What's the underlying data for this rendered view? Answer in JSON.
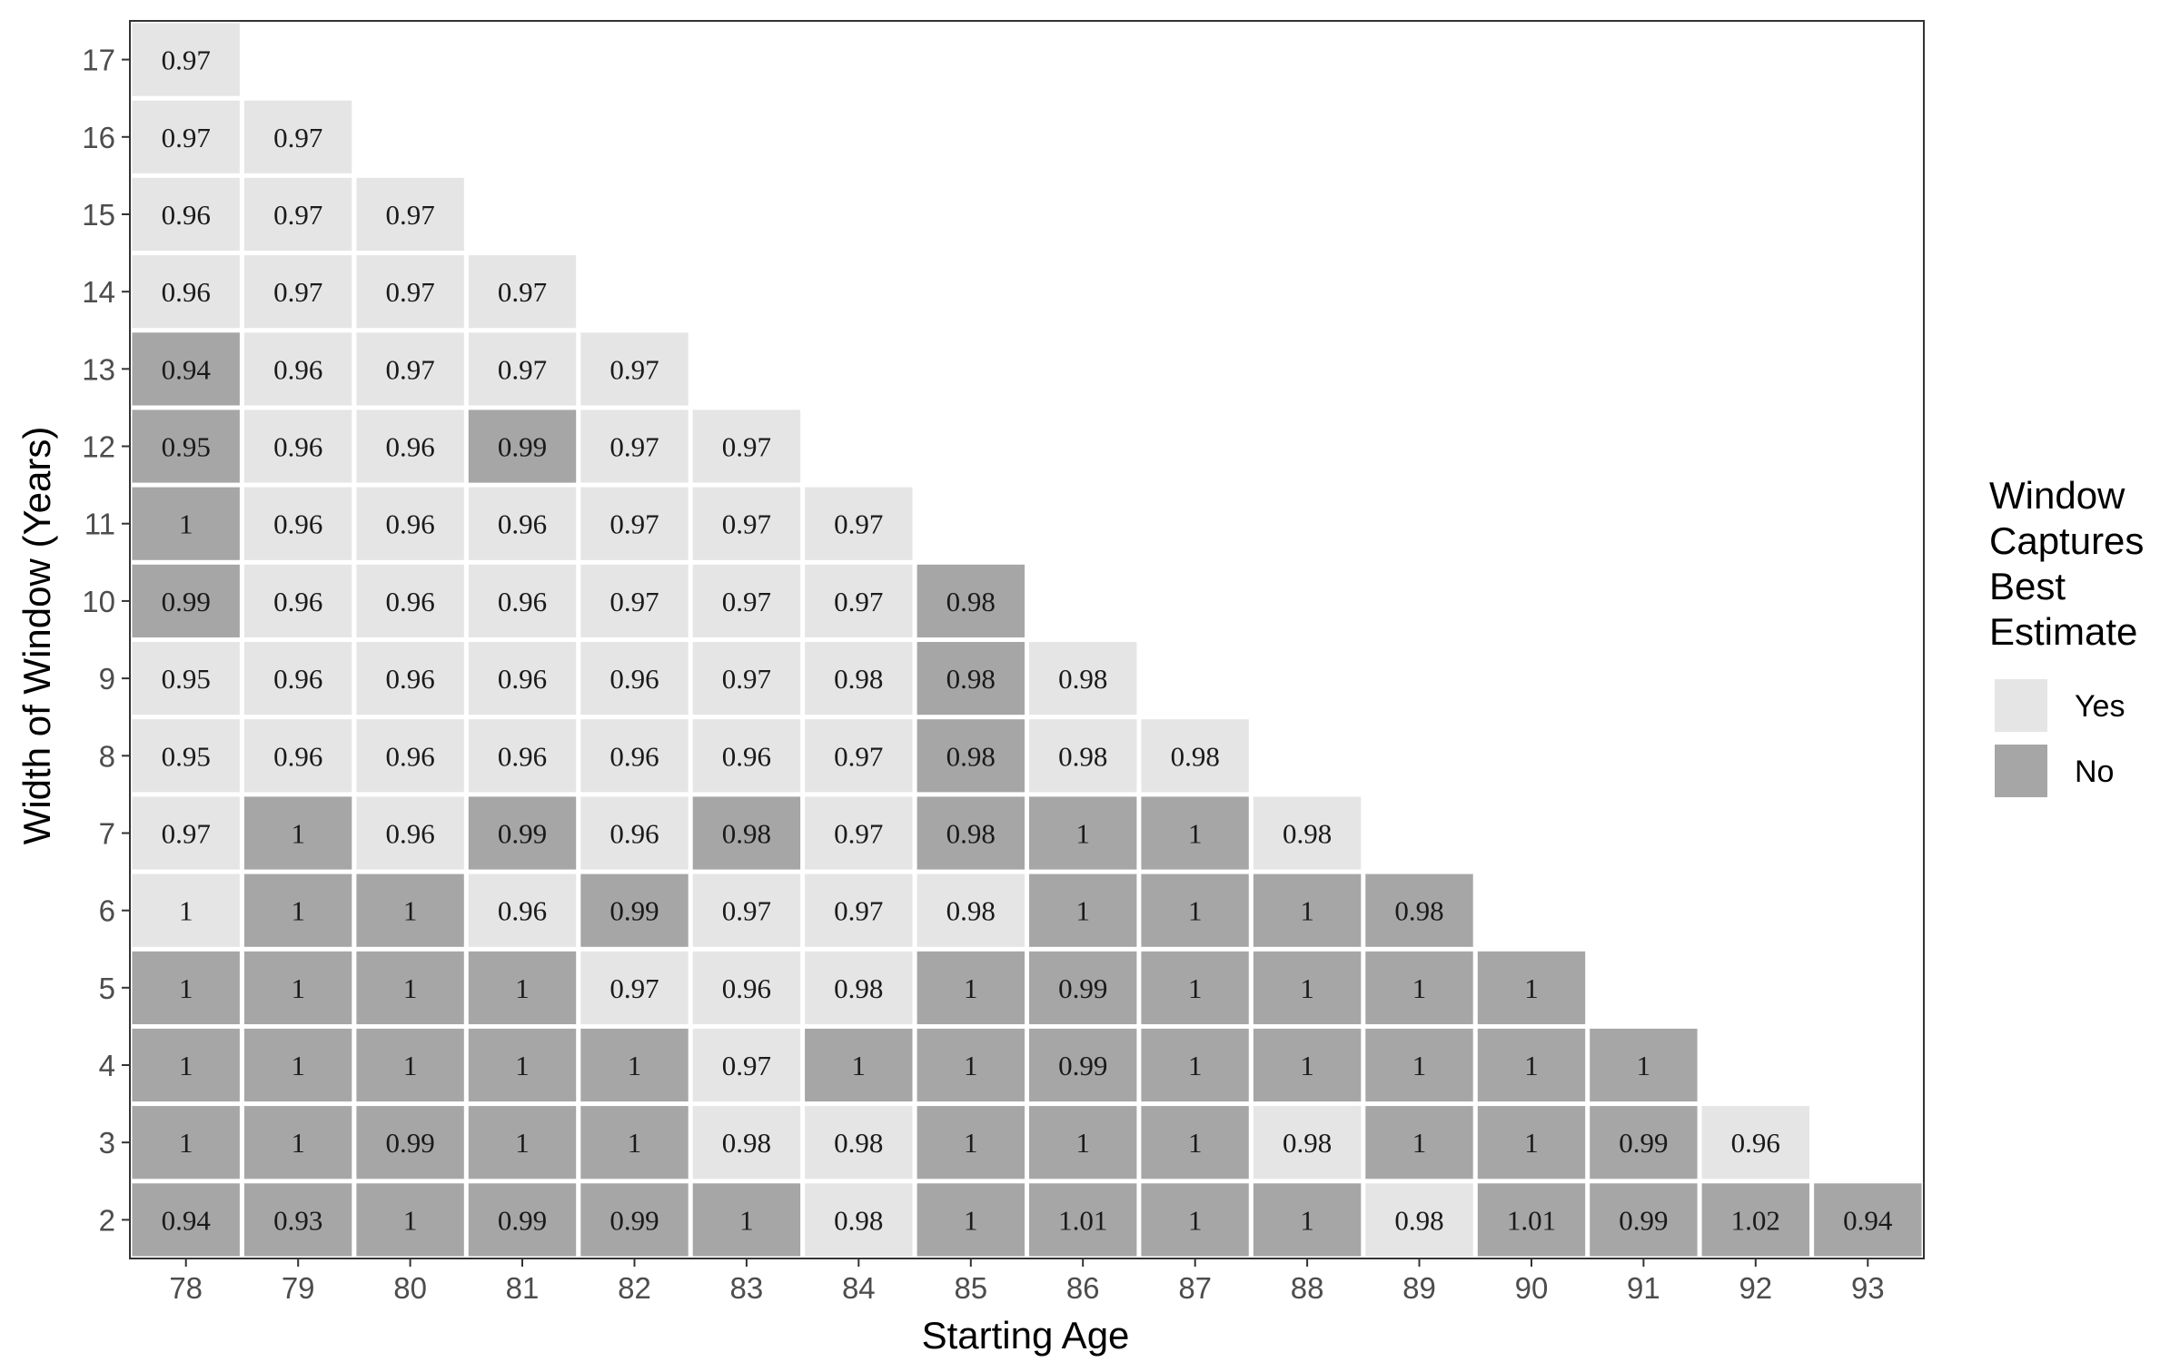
{
  "chart_data": {
    "type": "heatmap",
    "title": "",
    "xlabel": "Starting Age",
    "ylabel": "Width of Window (Years)",
    "x_ticks": [
      "78",
      "79",
      "80",
      "81",
      "82",
      "83",
      "84",
      "85",
      "86",
      "87",
      "88",
      "89",
      "90",
      "91",
      "92",
      "93"
    ],
    "y_ticks": [
      "2",
      "3",
      "4",
      "5",
      "6",
      "7",
      "8",
      "9",
      "10",
      "11",
      "12",
      "13",
      "14",
      "15",
      "16",
      "17"
    ],
    "legend": {
      "title": "Window Captures Best Estimate",
      "title_lines": [
        "Window",
        "Captures",
        "Best",
        "Estimate"
      ],
      "placement": "right",
      "entries": [
        {
          "label": "Yes",
          "key": "Y",
          "color": "#e5e5e5"
        },
        {
          "label": "No",
          "key": "N",
          "color": "#a6a6a6"
        }
      ]
    },
    "grid": false,
    "columns": [
      {
        "age": "78",
        "cells": [
          {
            "w": 2,
            "v": "0.94",
            "c": "N"
          },
          {
            "w": 3,
            "v": "1",
            "c": "N"
          },
          {
            "w": 4,
            "v": "1",
            "c": "N"
          },
          {
            "w": 5,
            "v": "1",
            "c": "N"
          },
          {
            "w": 6,
            "v": "1",
            "c": "Y"
          },
          {
            "w": 7,
            "v": "0.97",
            "c": "Y"
          },
          {
            "w": 8,
            "v": "0.95",
            "c": "Y"
          },
          {
            "w": 9,
            "v": "0.95",
            "c": "Y"
          },
          {
            "w": 10,
            "v": "0.99",
            "c": "N"
          },
          {
            "w": 11,
            "v": "1",
            "c": "N"
          },
          {
            "w": 12,
            "v": "0.95",
            "c": "N"
          },
          {
            "w": 13,
            "v": "0.94",
            "c": "N"
          },
          {
            "w": 14,
            "v": "0.96",
            "c": "Y"
          },
          {
            "w": 15,
            "v": "0.96",
            "c": "Y"
          },
          {
            "w": 16,
            "v": "0.97",
            "c": "Y"
          },
          {
            "w": 17,
            "v": "0.97",
            "c": "Y"
          }
        ]
      },
      {
        "age": "79",
        "cells": [
          {
            "w": 2,
            "v": "0.93",
            "c": "N"
          },
          {
            "w": 3,
            "v": "1",
            "c": "N"
          },
          {
            "w": 4,
            "v": "1",
            "c": "N"
          },
          {
            "w": 5,
            "v": "1",
            "c": "N"
          },
          {
            "w": 6,
            "v": "1",
            "c": "N"
          },
          {
            "w": 7,
            "v": "1",
            "c": "N"
          },
          {
            "w": 8,
            "v": "0.96",
            "c": "Y"
          },
          {
            "w": 9,
            "v": "0.96",
            "c": "Y"
          },
          {
            "w": 10,
            "v": "0.96",
            "c": "Y"
          },
          {
            "w": 11,
            "v": "0.96",
            "c": "Y"
          },
          {
            "w": 12,
            "v": "0.96",
            "c": "Y"
          },
          {
            "w": 13,
            "v": "0.96",
            "c": "Y"
          },
          {
            "w": 14,
            "v": "0.97",
            "c": "Y"
          },
          {
            "w": 15,
            "v": "0.97",
            "c": "Y"
          },
          {
            "w": 16,
            "v": "0.97",
            "c": "Y"
          }
        ]
      },
      {
        "age": "80",
        "cells": [
          {
            "w": 2,
            "v": "1",
            "c": "N"
          },
          {
            "w": 3,
            "v": "0.99",
            "c": "N"
          },
          {
            "w": 4,
            "v": "1",
            "c": "N"
          },
          {
            "w": 5,
            "v": "1",
            "c": "N"
          },
          {
            "w": 6,
            "v": "1",
            "c": "N"
          },
          {
            "w": 7,
            "v": "0.96",
            "c": "Y"
          },
          {
            "w": 8,
            "v": "0.96",
            "c": "Y"
          },
          {
            "w": 9,
            "v": "0.96",
            "c": "Y"
          },
          {
            "w": 10,
            "v": "0.96",
            "c": "Y"
          },
          {
            "w": 11,
            "v": "0.96",
            "c": "Y"
          },
          {
            "w": 12,
            "v": "0.96",
            "c": "Y"
          },
          {
            "w": 13,
            "v": "0.97",
            "c": "Y"
          },
          {
            "w": 14,
            "v": "0.97",
            "c": "Y"
          },
          {
            "w": 15,
            "v": "0.97",
            "c": "Y"
          }
        ]
      },
      {
        "age": "81",
        "cells": [
          {
            "w": 2,
            "v": "0.99",
            "c": "N"
          },
          {
            "w": 3,
            "v": "1",
            "c": "N"
          },
          {
            "w": 4,
            "v": "1",
            "c": "N"
          },
          {
            "w": 5,
            "v": "1",
            "c": "N"
          },
          {
            "w": 6,
            "v": "0.96",
            "c": "Y"
          },
          {
            "w": 7,
            "v": "0.99",
            "c": "N"
          },
          {
            "w": 8,
            "v": "0.96",
            "c": "Y"
          },
          {
            "w": 9,
            "v": "0.96",
            "c": "Y"
          },
          {
            "w": 10,
            "v": "0.96",
            "c": "Y"
          },
          {
            "w": 11,
            "v": "0.96",
            "c": "Y"
          },
          {
            "w": 12,
            "v": "0.99",
            "c": "N"
          },
          {
            "w": 13,
            "v": "0.97",
            "c": "Y"
          },
          {
            "w": 14,
            "v": "0.97",
            "c": "Y"
          }
        ]
      },
      {
        "age": "82",
        "cells": [
          {
            "w": 2,
            "v": "0.99",
            "c": "N"
          },
          {
            "w": 3,
            "v": "1",
            "c": "N"
          },
          {
            "w": 4,
            "v": "1",
            "c": "N"
          },
          {
            "w": 5,
            "v": "0.97",
            "c": "Y"
          },
          {
            "w": 6,
            "v": "0.99",
            "c": "N"
          },
          {
            "w": 7,
            "v": "0.96",
            "c": "Y"
          },
          {
            "w": 8,
            "v": "0.96",
            "c": "Y"
          },
          {
            "w": 9,
            "v": "0.96",
            "c": "Y"
          },
          {
            "w": 10,
            "v": "0.97",
            "c": "Y"
          },
          {
            "w": 11,
            "v": "0.97",
            "c": "Y"
          },
          {
            "w": 12,
            "v": "0.97",
            "c": "Y"
          },
          {
            "w": 13,
            "v": "0.97",
            "c": "Y"
          }
        ]
      },
      {
        "age": "83",
        "cells": [
          {
            "w": 2,
            "v": "1",
            "c": "N"
          },
          {
            "w": 3,
            "v": "0.98",
            "c": "Y"
          },
          {
            "w": 4,
            "v": "0.97",
            "c": "Y"
          },
          {
            "w": 5,
            "v": "0.96",
            "c": "Y"
          },
          {
            "w": 6,
            "v": "0.97",
            "c": "Y"
          },
          {
            "w": 7,
            "v": "0.98",
            "c": "N"
          },
          {
            "w": 8,
            "v": "0.96",
            "c": "Y"
          },
          {
            "w": 9,
            "v": "0.97",
            "c": "Y"
          },
          {
            "w": 10,
            "v": "0.97",
            "c": "Y"
          },
          {
            "w": 11,
            "v": "0.97",
            "c": "Y"
          },
          {
            "w": 12,
            "v": "0.97",
            "c": "Y"
          }
        ]
      },
      {
        "age": "84",
        "cells": [
          {
            "w": 2,
            "v": "0.98",
            "c": "Y"
          },
          {
            "w": 3,
            "v": "0.98",
            "c": "Y"
          },
          {
            "w": 4,
            "v": "1",
            "c": "N"
          },
          {
            "w": 5,
            "v": "0.98",
            "c": "Y"
          },
          {
            "w": 6,
            "v": "0.97",
            "c": "Y"
          },
          {
            "w": 7,
            "v": "0.97",
            "c": "Y"
          },
          {
            "w": 8,
            "v": "0.97",
            "c": "Y"
          },
          {
            "w": 9,
            "v": "0.98",
            "c": "Y"
          },
          {
            "w": 10,
            "v": "0.97",
            "c": "Y"
          },
          {
            "w": 11,
            "v": "0.97",
            "c": "Y"
          }
        ]
      },
      {
        "age": "85",
        "cells": [
          {
            "w": 2,
            "v": "1",
            "c": "N"
          },
          {
            "w": 3,
            "v": "1",
            "c": "N"
          },
          {
            "w": 4,
            "v": "1",
            "c": "N"
          },
          {
            "w": 5,
            "v": "1",
            "c": "N"
          },
          {
            "w": 6,
            "v": "0.98",
            "c": "Y"
          },
          {
            "w": 7,
            "v": "0.98",
            "c": "N"
          },
          {
            "w": 8,
            "v": "0.98",
            "c": "N"
          },
          {
            "w": 9,
            "v": "0.98",
            "c": "N"
          },
          {
            "w": 10,
            "v": "0.98",
            "c": "N"
          }
        ]
      },
      {
        "age": "86",
        "cells": [
          {
            "w": 2,
            "v": "1.01",
            "c": "N"
          },
          {
            "w": 3,
            "v": "1",
            "c": "N"
          },
          {
            "w": 4,
            "v": "0.99",
            "c": "N"
          },
          {
            "w": 5,
            "v": "0.99",
            "c": "N"
          },
          {
            "w": 6,
            "v": "1",
            "c": "N"
          },
          {
            "w": 7,
            "v": "1",
            "c": "N"
          },
          {
            "w": 8,
            "v": "0.98",
            "c": "Y"
          },
          {
            "w": 9,
            "v": "0.98",
            "c": "Y"
          }
        ]
      },
      {
        "age": "87",
        "cells": [
          {
            "w": 2,
            "v": "1",
            "c": "N"
          },
          {
            "w": 3,
            "v": "1",
            "c": "N"
          },
          {
            "w": 4,
            "v": "1",
            "c": "N"
          },
          {
            "w": 5,
            "v": "1",
            "c": "N"
          },
          {
            "w": 6,
            "v": "1",
            "c": "N"
          },
          {
            "w": 7,
            "v": "1",
            "c": "N"
          },
          {
            "w": 8,
            "v": "0.98",
            "c": "Y"
          }
        ]
      },
      {
        "age": "88",
        "cells": [
          {
            "w": 2,
            "v": "1",
            "c": "N"
          },
          {
            "w": 3,
            "v": "0.98",
            "c": "Y"
          },
          {
            "w": 4,
            "v": "1",
            "c": "N"
          },
          {
            "w": 5,
            "v": "1",
            "c": "N"
          },
          {
            "w": 6,
            "v": "1",
            "c": "N"
          },
          {
            "w": 7,
            "v": "0.98",
            "c": "Y"
          }
        ]
      },
      {
        "age": "89",
        "cells": [
          {
            "w": 2,
            "v": "0.98",
            "c": "Y"
          },
          {
            "w": 3,
            "v": "1",
            "c": "N"
          },
          {
            "w": 4,
            "v": "1",
            "c": "N"
          },
          {
            "w": 5,
            "v": "1",
            "c": "N"
          },
          {
            "w": 6,
            "v": "0.98",
            "c": "N"
          }
        ]
      },
      {
        "age": "90",
        "cells": [
          {
            "w": 2,
            "v": "1.01",
            "c": "N"
          },
          {
            "w": 3,
            "v": "1",
            "c": "N"
          },
          {
            "w": 4,
            "v": "1",
            "c": "N"
          },
          {
            "w": 5,
            "v": "1",
            "c": "N"
          }
        ]
      },
      {
        "age": "91",
        "cells": [
          {
            "w": 2,
            "v": "0.99",
            "c": "N"
          },
          {
            "w": 3,
            "v": "0.99",
            "c": "N"
          },
          {
            "w": 4,
            "v": "1",
            "c": "N"
          }
        ]
      },
      {
        "age": "92",
        "cells": [
          {
            "w": 2,
            "v": "1.02",
            "c": "N"
          },
          {
            "w": 3,
            "v": "0.96",
            "c": "Y"
          }
        ]
      },
      {
        "age": "93",
        "cells": [
          {
            "w": 2,
            "v": "0.94",
            "c": "N"
          }
        ]
      }
    ]
  }
}
